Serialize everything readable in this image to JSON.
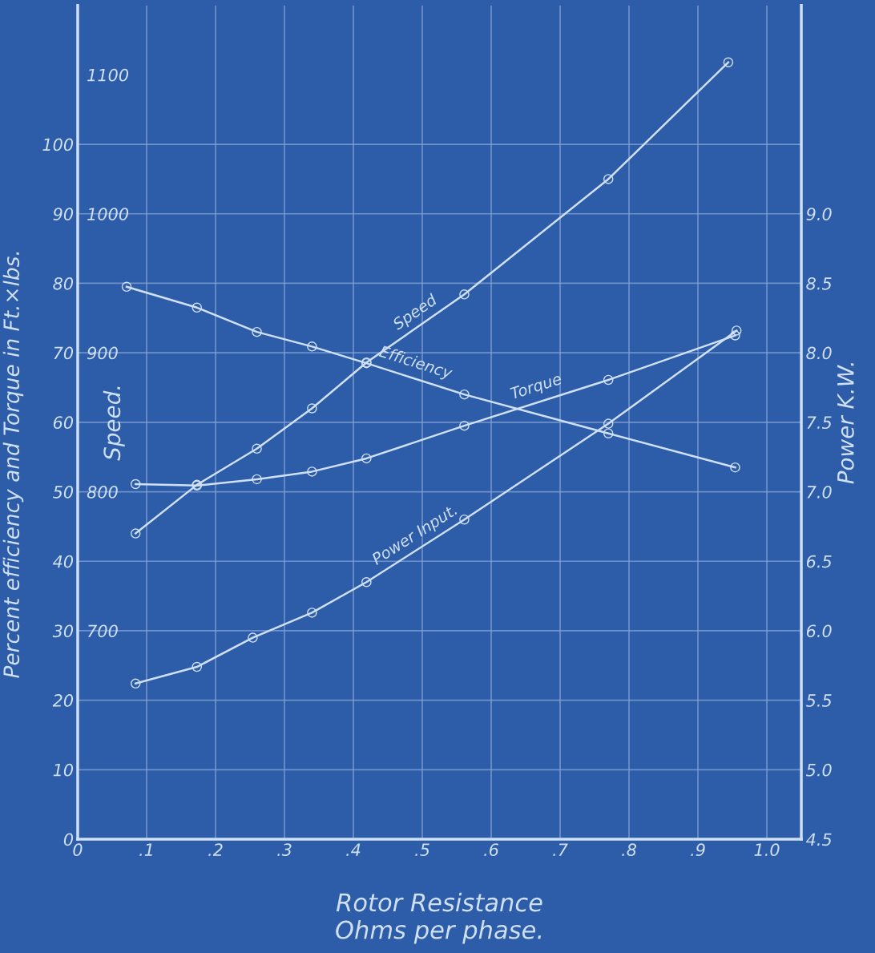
{
  "chart_data": {
    "type": "line",
    "xlabel": "Rotor Resistance\nOhms per phase.",
    "ylabel": "Percent efficiency and Torque in Ft.×lbs.",
    "y2label": "Speed.",
    "y3label": "Power K.W.",
    "xlim": [
      0,
      1.05
    ],
    "xticks": [
      0,
      {
        "value": 0.1,
        "label": ".1"
      },
      {
        "value": 0.2,
        "label": ".2"
      },
      {
        "value": 0.3,
        "label": ".3"
      },
      {
        "value": 0.4,
        "label": ".4"
      },
      {
        "value": 0.5,
        "label": ".5"
      },
      {
        "value": 0.6,
        "label": ".6"
      },
      {
        "value": 0.7,
        "label": ".7"
      },
      {
        "value": 0.8,
        "label": ".8"
      },
      {
        "value": 0.9,
        "label": ".9"
      },
      {
        "value": 1.0,
        "label": "1.0"
      }
    ],
    "ylim": [
      0,
      120
    ],
    "yticks": [
      0,
      10,
      20,
      30,
      40,
      50,
      60,
      70,
      80,
      90,
      100
    ],
    "y2lim": [
      550,
      1150
    ],
    "y2ticks": [
      700,
      800,
      900,
      1000,
      1100
    ],
    "y3lim": [
      4.5,
      10.5
    ],
    "y3ticks": [
      {
        "value": 4.5,
        "label": "4.5"
      },
      {
        "value": 5.0,
        "label": "5.0"
      },
      {
        "value": 5.5,
        "label": "5.5"
      },
      {
        "value": 6.0,
        "label": "6.0"
      },
      {
        "value": 6.5,
        "label": "6.5"
      },
      {
        "value": 7.0,
        "label": "7.0"
      },
      {
        "value": 7.5,
        "label": "7.5"
      },
      {
        "value": 8.0,
        "label": "8.0"
      },
      {
        "value": 8.5,
        "label": "8.5"
      },
      {
        "value": 9.0,
        "label": "9.0"
      }
    ],
    "grid": true,
    "marker": "circle",
    "line_style": "solid",
    "legend": false,
    "series": [
      {
        "name": "Speed",
        "color": "#cfe0f2",
        "axis": "y2",
        "x": [
          0.084,
          0.173,
          0.26,
          0.34,
          0.419,
          0.561,
          0.77,
          0.944
        ],
        "values": [
          770,
          805,
          831,
          860,
          893,
          942,
          1025,
          1109
        ]
      },
      {
        "name": "Efficiency",
        "color": "#cfe0f2",
        "x": [
          0.071,
          0.173,
          0.26,
          0.34,
          0.419,
          0.561,
          0.77,
          0.954
        ],
        "values": [
          79.5,
          76.5,
          73.0,
          70.9,
          68.5,
          64.0,
          58.4,
          53.5
        ]
      },
      {
        "name": "Torque",
        "color": "#cfe0f2",
        "x": [
          0.084,
          0.173,
          0.26,
          0.34,
          0.419,
          0.561,
          0.77,
          0.954
        ],
        "values": [
          51.1,
          50.9,
          51.8,
          52.9,
          54.8,
          59.5,
          66.1,
          72.5
        ]
      },
      {
        "name": "Power Input.",
        "color": "#cfe0f2",
        "axis": "y3",
        "x": [
          0.084,
          0.173,
          0.254,
          0.34,
          0.419,
          0.561,
          0.77,
          0.956
        ],
        "values": [
          5.62,
          5.74,
          5.95,
          6.13,
          6.35,
          6.8,
          7.49,
          8.16
        ]
      }
    ]
  }
}
